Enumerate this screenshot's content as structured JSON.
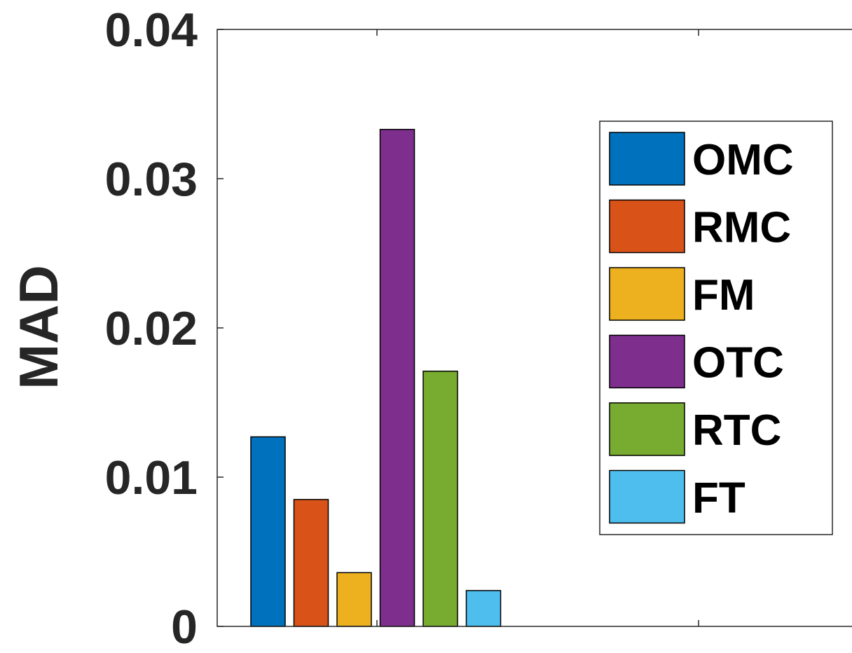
{
  "chart_data": {
    "type": "bar",
    "title": "",
    "xlabel": "",
    "ylabel": "MAD",
    "ylim": [
      0,
      0.04
    ],
    "yticks": [
      "0",
      "0.01",
      "0.02",
      "0.03",
      "0.04"
    ],
    "grid": false,
    "legend_position": "top-right",
    "series": [
      {
        "name": "OMC",
        "value": 0.0127,
        "color": "#0072BD"
      },
      {
        "name": "RMC",
        "value": 0.0085,
        "color": "#D95319"
      },
      {
        "name": "FM",
        "value": 0.0036,
        "color": "#EDB120"
      },
      {
        "name": "OTC",
        "value": 0.0333,
        "color": "#7E2F8E"
      },
      {
        "name": "RTC",
        "value": 0.0171,
        "color": "#77AC30"
      },
      {
        "name": "FT",
        "value": 0.0024,
        "color": "#4DBEEE"
      }
    ]
  }
}
